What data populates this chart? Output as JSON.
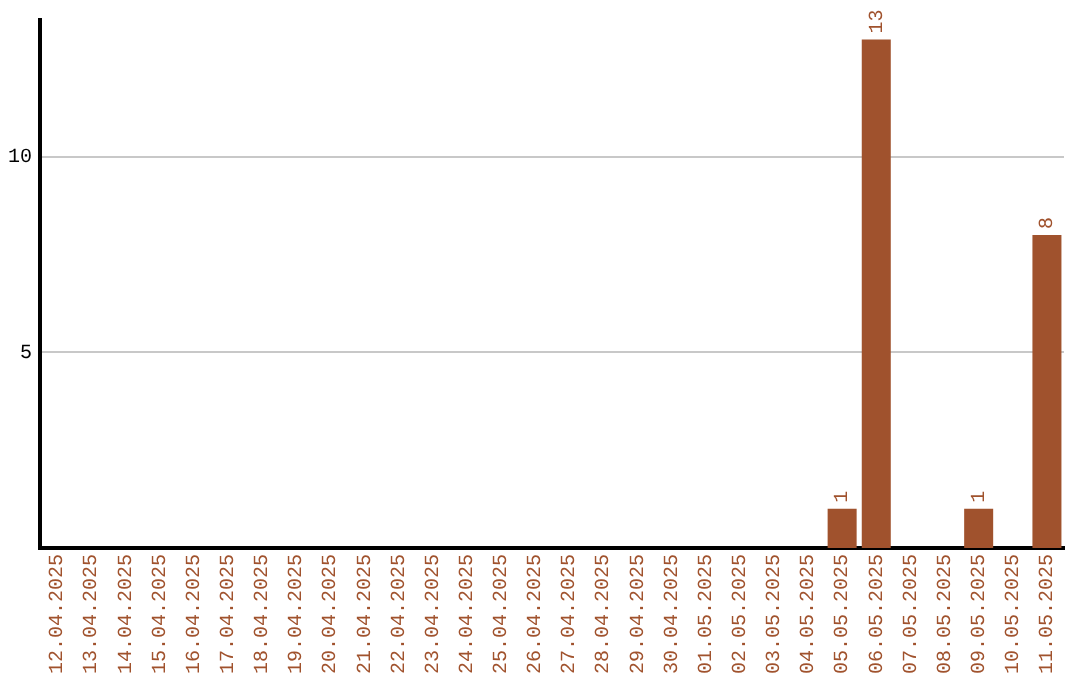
{
  "chart_data": {
    "type": "bar",
    "categories": [
      "12.04.2025",
      "13.04.2025",
      "14.04.2025",
      "15.04.2025",
      "16.04.2025",
      "17.04.2025",
      "18.04.2025",
      "19.04.2025",
      "20.04.2025",
      "21.04.2025",
      "22.04.2025",
      "23.04.2025",
      "24.04.2025",
      "25.04.2025",
      "26.04.2025",
      "27.04.2025",
      "28.04.2025",
      "29.04.2025",
      "30.04.2025",
      "01.05.2025",
      "02.05.2025",
      "03.05.2025",
      "04.05.2025",
      "05.05.2025",
      "06.05.2025",
      "07.05.2025",
      "08.05.2025",
      "09.05.2025",
      "10.05.2025",
      "11.05.2025"
    ],
    "values": [
      0,
      0,
      0,
      0,
      0,
      0,
      0,
      0,
      0,
      0,
      0,
      0,
      0,
      0,
      0,
      0,
      0,
      0,
      0,
      0,
      0,
      0,
      0,
      1,
      13,
      0,
      0,
      1,
      0,
      8
    ],
    "value_labels": [
      null,
      null,
      null,
      null,
      null,
      null,
      null,
      null,
      null,
      null,
      null,
      null,
      null,
      null,
      null,
      null,
      null,
      null,
      null,
      null,
      null,
      null,
      null,
      "1",
      "13",
      null,
      null,
      "1",
      null,
      "8"
    ],
    "color": "#a0522d",
    "ylim": [
      0,
      13.5
    ],
    "yticks": [
      5,
      10
    ],
    "grid": "y",
    "legend": false
  }
}
